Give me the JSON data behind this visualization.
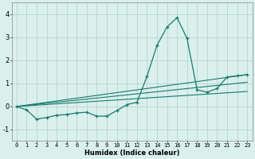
{
  "xlabel": "Humidex (Indice chaleur)",
  "bg_color": "#daf0ec",
  "grid_color": "#b8d4d0",
  "line_color": "#1a7a6e",
  "xlim": [
    -0.5,
    23.5
  ],
  "ylim": [
    -1.5,
    4.5
  ],
  "xticks": [
    0,
    1,
    2,
    3,
    4,
    5,
    6,
    7,
    8,
    9,
    10,
    11,
    12,
    13,
    14,
    15,
    16,
    17,
    18,
    19,
    20,
    21,
    22,
    23
  ],
  "yticks": [
    -1,
    0,
    1,
    2,
    3,
    4
  ],
  "main_series": {
    "x": [
      0,
      1,
      2,
      3,
      4,
      5,
      6,
      7,
      8,
      9,
      10,
      11,
      12,
      13,
      14,
      15,
      16,
      17,
      18,
      19,
      20,
      21,
      22,
      23
    ],
    "y": [
      0.0,
      -0.15,
      -0.55,
      -0.48,
      -0.38,
      -0.35,
      -0.28,
      -0.25,
      -0.42,
      -0.42,
      -0.18,
      0.08,
      0.18,
      1.3,
      2.65,
      3.45,
      3.85,
      2.95,
      0.72,
      0.62,
      0.78,
      1.28,
      1.33,
      1.38
    ]
  },
  "trend_lines": [
    {
      "x": [
        0,
        23
      ],
      "y": [
        0.0,
        1.38
      ]
    },
    {
      "x": [
        0,
        23
      ],
      "y": [
        0.0,
        1.05
      ]
    },
    {
      "x": [
        0,
        23
      ],
      "y": [
        0.0,
        0.65
      ]
    }
  ]
}
